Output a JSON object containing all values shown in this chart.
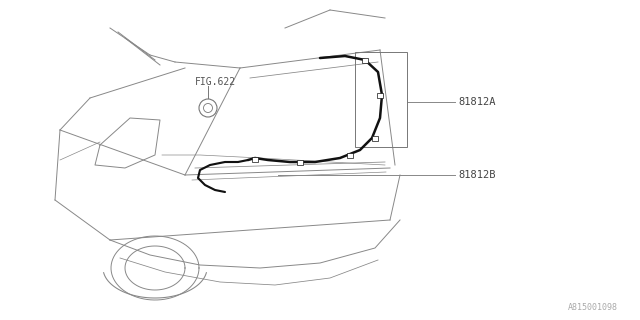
{
  "background_color": "#ffffff",
  "line_color": "#888888",
  "dark_line_color": "#111111",
  "fig_ref_text": "FIG.622",
  "label_a": "81812A",
  "label_b": "81812B",
  "part_id": "A815001098",
  "fig_size": [
    6.4,
    3.2
  ],
  "dpi": 100,
  "lw_body": 0.7,
  "lw_cord": 1.8,
  "lw_callout": 0.7
}
